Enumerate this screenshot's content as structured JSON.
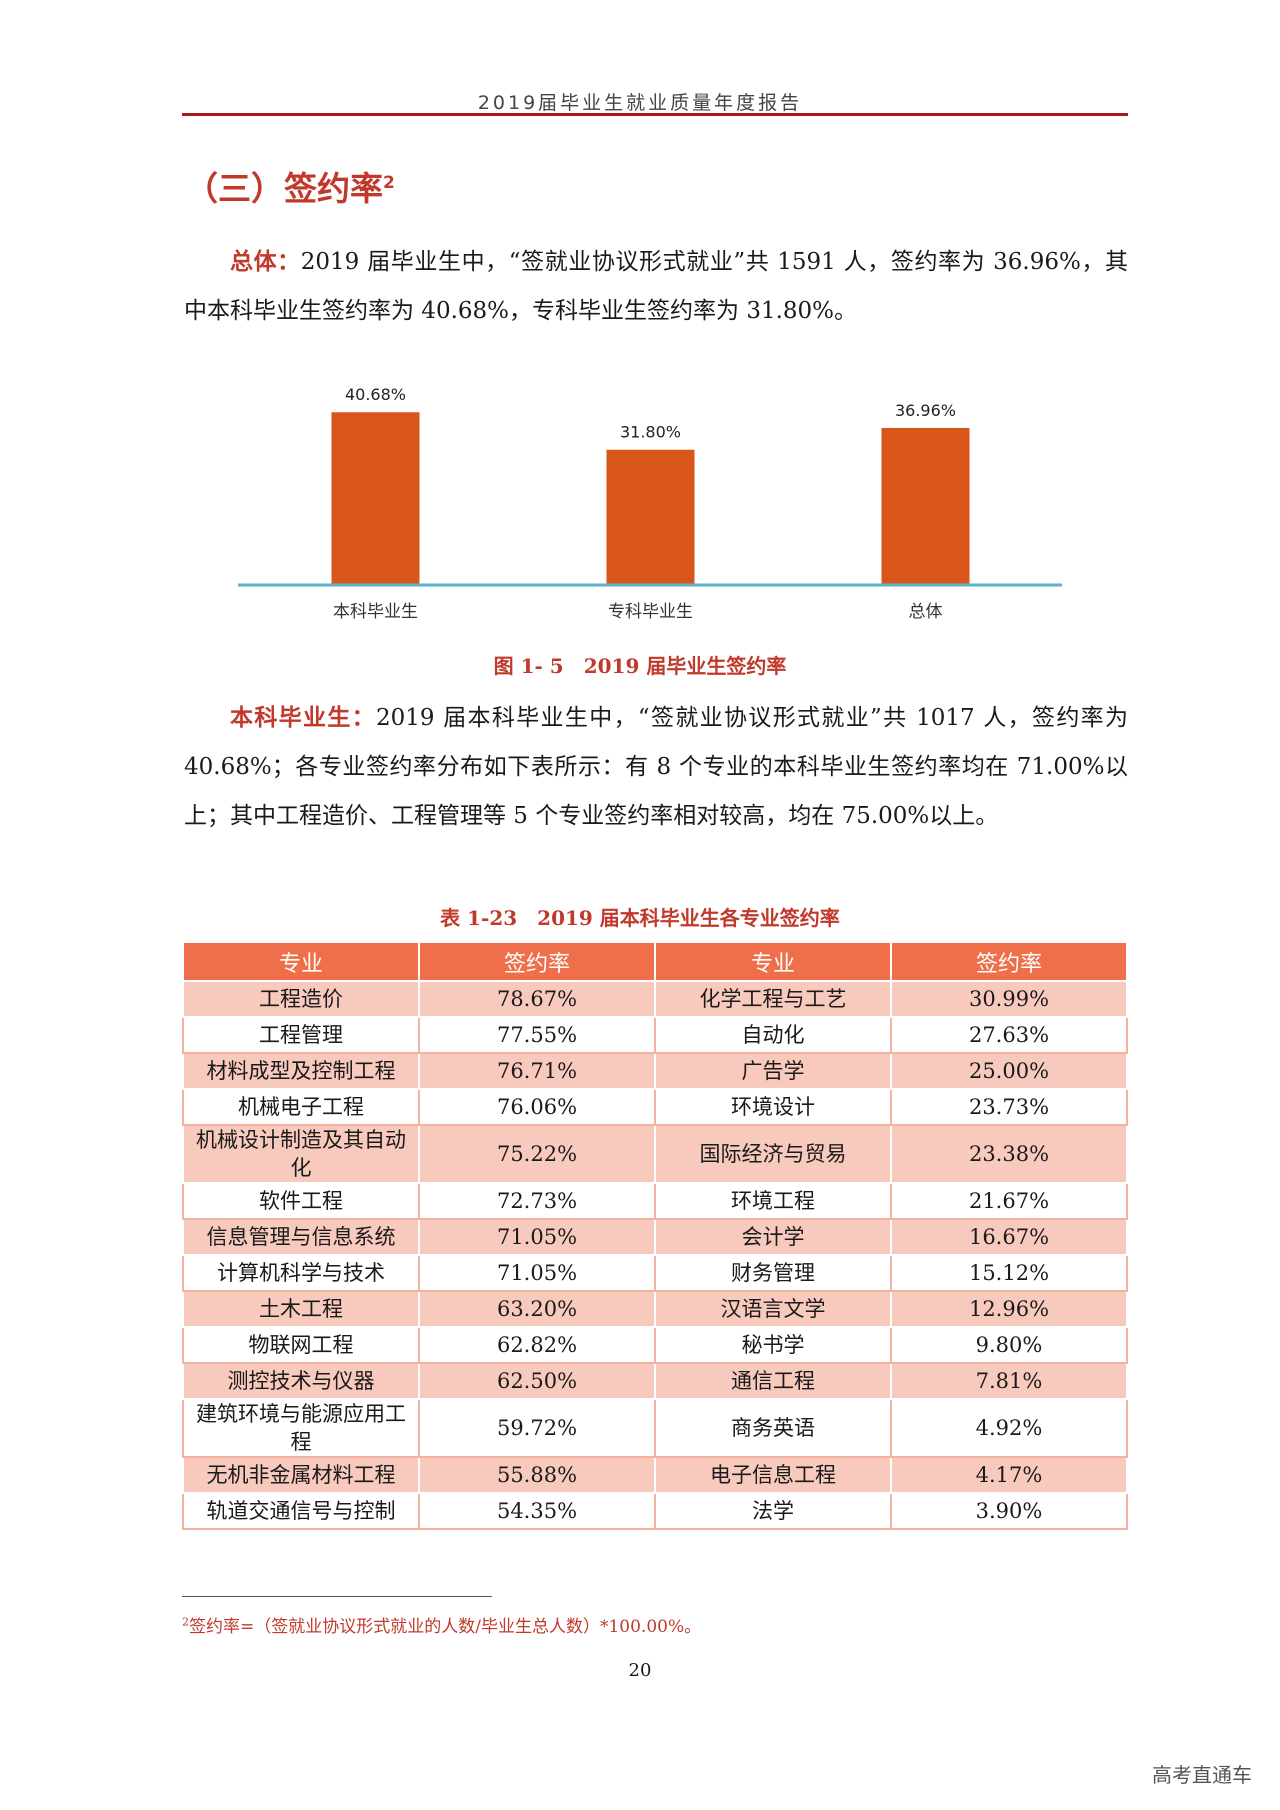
{
  "header": {
    "title": "2019届毕业生就业质量年度报告"
  },
  "section": {
    "heading": "（三）签约率",
    "footnote_mark": "2"
  },
  "paragraph1": {
    "lead": "总体：",
    "text": "2019 届毕业生中，“签就业协议形式就业”共 1591 人，签约率为 36.96%，其中本科毕业生签约率为 40.68%，专科毕业生签约率为 31.80%。"
  },
  "chart_data": {
    "type": "bar",
    "categories": [
      "本科毕业生",
      "专科毕业生",
      "总体"
    ],
    "values": [
      40.68,
      31.8,
      36.96
    ],
    "data_labels": [
      "40.68%",
      "31.80%",
      "36.96%"
    ],
    "ylim": [
      0,
      45
    ],
    "bar_color": "#d9561a",
    "axis_color": "#5ab4c5",
    "grid": false
  },
  "figure_caption": "图 1- 5　2019 届毕业生签约率",
  "paragraph2": {
    "lead": "本科毕业生：",
    "text": "2019 届本科毕业生中，“签就业协议形式就业”共 1017 人，签约率为 40.68%；各专业签约率分布如下表所示：有 8 个专业的本科毕业生签约率均在 71.00%以上；其中工程造价、工程管理等 5 个专业签约率相对较高，均在 75.00%以上。"
  },
  "table_caption": "表 1-23　2019 届本科毕业生各专业签约率",
  "table": {
    "headers": [
      "专业",
      "签约率",
      "专业",
      "签约率"
    ],
    "rows": [
      [
        "工程造价",
        "78.67%",
        "化学工程与工艺",
        "30.99%"
      ],
      [
        "工程管理",
        "77.55%",
        "自动化",
        "27.63%"
      ],
      [
        "材料成型及控制工程",
        "76.71%",
        "广告学",
        "25.00%"
      ],
      [
        "机械电子工程",
        "76.06%",
        "环境设计",
        "23.73%"
      ],
      [
        "机械设计制造及其自动化",
        "75.22%",
        "国际经济与贸易",
        "23.38%"
      ],
      [
        "软件工程",
        "72.73%",
        "环境工程",
        "21.67%"
      ],
      [
        "信息管理与信息系统",
        "71.05%",
        "会计学",
        "16.67%"
      ],
      [
        "计算机科学与技术",
        "71.05%",
        "财务管理",
        "15.12%"
      ],
      [
        "土木工程",
        "63.20%",
        "汉语言文学",
        "12.96%"
      ],
      [
        "物联网工程",
        "62.82%",
        "秘书学",
        "9.80%"
      ],
      [
        "测控技术与仪器",
        "62.50%",
        "通信工程",
        "7.81%"
      ],
      [
        "建筑环境与能源应用工程",
        "59.72%",
        "商务英语",
        "4.92%"
      ],
      [
        "无机非金属材料工程",
        "55.88%",
        "电子信息工程",
        "4.17%"
      ],
      [
        "轨道交通信号与控制",
        "54.35%",
        "法学",
        "3.90%"
      ]
    ],
    "header_color": "#ef6f4a",
    "stripe_color": "#f8c9bd"
  },
  "footnote": {
    "mark": "2",
    "text": "签约率=（签就业协议形式就业的人数/毕业生总人数）*100.00%。"
  },
  "page_number": "20",
  "watermark": "高考直通车"
}
